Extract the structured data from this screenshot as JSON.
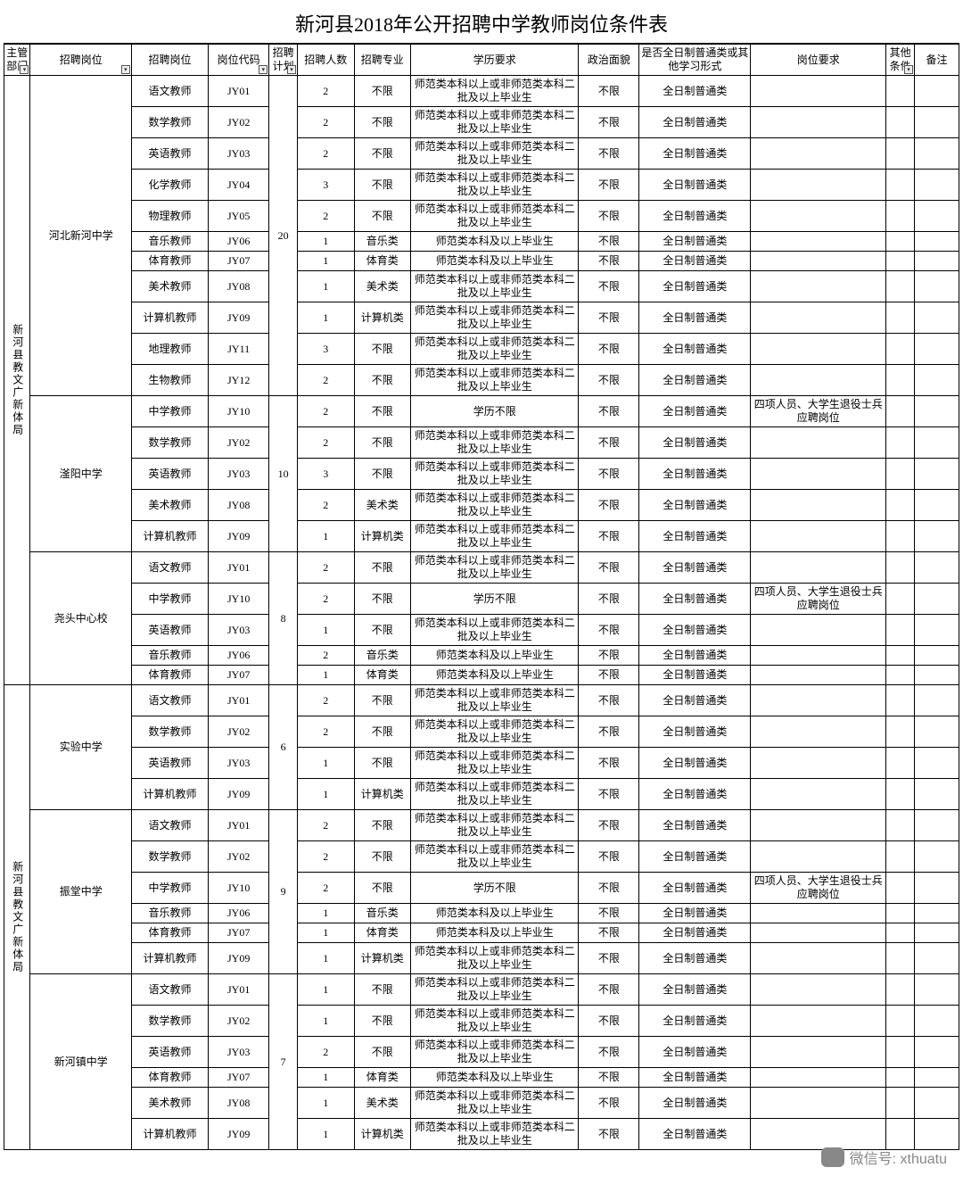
{
  "title": "新河县2018年公开招聘中学教师岗位条件表",
  "headers": [
    "主管部门",
    "招聘岗位",
    "招聘岗位",
    "岗位代码",
    "招聘计划",
    "招聘人数",
    "招聘专业",
    "学历要求",
    "政治面貌",
    "是否全日制普通类或其他学习形式",
    "岗位要求",
    "其他条件",
    "备注"
  ],
  "filter_cols": [
    0,
    1,
    3,
    4,
    11
  ],
  "edu_long": "师范类本科以上或非师范类本科二批及以上毕业生",
  "edu_short": "师范类本科及以上毕业生",
  "edu_none": "学历不限",
  "pol": "不限",
  "fulltime": "全日制普通类",
  "req_special": "四项人员、大学生退役士兵应聘岗位",
  "watermark": "微信号: xthuatu",
  "dept_groups": [
    {
      "dept": "新河县教文广新体局",
      "orgs": [
        {
          "org": "河北新河中学",
          "plan": 20,
          "rows": [
            {
              "pos": "语文教师",
              "code": "JY01",
              "n": 2,
              "spec": "不限",
              "edu": "long"
            },
            {
              "pos": "数学教师",
              "code": "JY02",
              "n": 2,
              "spec": "不限",
              "edu": "long"
            },
            {
              "pos": "英语教师",
              "code": "JY03",
              "n": 2,
              "spec": "不限",
              "edu": "long"
            },
            {
              "pos": "化学教师",
              "code": "JY04",
              "n": 3,
              "spec": "不限",
              "edu": "long"
            },
            {
              "pos": "物理教师",
              "code": "JY05",
              "n": 2,
              "spec": "不限",
              "edu": "long"
            },
            {
              "pos": "音乐教师",
              "code": "JY06",
              "n": 1,
              "spec": "音乐类",
              "edu": "short",
              "h": "short"
            },
            {
              "pos": "体育教师",
              "code": "JY07",
              "n": 1,
              "spec": "体育类",
              "edu": "short",
              "h": "short"
            },
            {
              "pos": "美术教师",
              "code": "JY08",
              "n": 1,
              "spec": "美术类",
              "edu": "long"
            },
            {
              "pos": "计算机教师",
              "code": "JY09",
              "n": 1,
              "spec": "计算机类",
              "edu": "long"
            },
            {
              "pos": "地理教师",
              "code": "JY11",
              "n": 3,
              "spec": "不限",
              "edu": "long"
            },
            {
              "pos": "生物教师",
              "code": "JY12",
              "n": 2,
              "spec": "不限",
              "edu": "long"
            }
          ]
        },
        {
          "org": "滏阳中学",
          "plan": 10,
          "rows": [
            {
              "pos": "中学教师",
              "code": "JY10",
              "n": 2,
              "spec": "不限",
              "edu": "none",
              "req": true
            },
            {
              "pos": "数学教师",
              "code": "JY02",
              "n": 2,
              "spec": "不限",
              "edu": "long"
            },
            {
              "pos": "英语教师",
              "code": "JY03",
              "n": 3,
              "spec": "不限",
              "edu": "long"
            },
            {
              "pos": "美术教师",
              "code": "JY08",
              "n": 2,
              "spec": "美术类",
              "edu": "long"
            },
            {
              "pos": "计算机教师",
              "code": "JY09",
              "n": 1,
              "spec": "计算机类",
              "edu": "long"
            }
          ]
        },
        {
          "org": "尧头中心校",
          "plan": 8,
          "rows": [
            {
              "pos": "语文教师",
              "code": "JY01",
              "n": 2,
              "spec": "不限",
              "edu": "long"
            },
            {
              "pos": "中学教师",
              "code": "JY10",
              "n": 2,
              "spec": "不限",
              "edu": "none",
              "req": true
            },
            {
              "pos": "英语教师",
              "code": "JY03",
              "n": 1,
              "spec": "不限",
              "edu": "long"
            },
            {
              "pos": "音乐教师",
              "code": "JY06",
              "n": 2,
              "spec": "音乐类",
              "edu": "short",
              "h": "short"
            },
            {
              "pos": "体育教师",
              "code": "JY07",
              "n": 1,
              "spec": "体育类",
              "edu": "short",
              "h": "short"
            }
          ]
        }
      ]
    },
    {
      "dept": "新河县教文广新体局",
      "orgs": [
        {
          "org": "实验中学",
          "plan": 6,
          "rows": [
            {
              "pos": "语文教师",
              "code": "JY01",
              "n": 2,
              "spec": "不限",
              "edu": "long"
            },
            {
              "pos": "数学教师",
              "code": "JY02",
              "n": 2,
              "spec": "不限",
              "edu": "long"
            },
            {
              "pos": "英语教师",
              "code": "JY03",
              "n": 1,
              "spec": "不限",
              "edu": "long"
            },
            {
              "pos": "计算机教师",
              "code": "JY09",
              "n": 1,
              "spec": "计算机类",
              "edu": "long"
            }
          ]
        },
        {
          "org": "振堂中学",
          "plan": 9,
          "rows": [
            {
              "pos": "语文教师",
              "code": "JY01",
              "n": 2,
              "spec": "不限",
              "edu": "long"
            },
            {
              "pos": "数学教师",
              "code": "JY02",
              "n": 2,
              "spec": "不限",
              "edu": "long"
            },
            {
              "pos": "中学教师",
              "code": "JY10",
              "n": 2,
              "spec": "不限",
              "edu": "none",
              "req": true
            },
            {
              "pos": "音乐教师",
              "code": "JY06",
              "n": 1,
              "spec": "音乐类",
              "edu": "short",
              "h": "short"
            },
            {
              "pos": "体育教师",
              "code": "JY07",
              "n": 1,
              "spec": "体育类",
              "edu": "short",
              "h": "short"
            },
            {
              "pos": "计算机教师",
              "code": "JY09",
              "n": 1,
              "spec": "计算机类",
              "edu": "long"
            }
          ]
        },
        {
          "org": "新河镇中学",
          "plan": 7,
          "rows": [
            {
              "pos": "语文教师",
              "code": "JY01",
              "n": 1,
              "spec": "不限",
              "edu": "long"
            },
            {
              "pos": "数学教师",
              "code": "JY02",
              "n": 1,
              "spec": "不限",
              "edu": "long"
            },
            {
              "pos": "英语教师",
              "code": "JY03",
              "n": 2,
              "spec": "不限",
              "edu": "long"
            },
            {
              "pos": "体育教师",
              "code": "JY07",
              "n": 1,
              "spec": "体育类",
              "edu": "short",
              "h": "short"
            },
            {
              "pos": "美术教师",
              "code": "JY08",
              "n": 1,
              "spec": "美术类",
              "edu": "long"
            },
            {
              "pos": "计算机教师",
              "code": "JY09",
              "n": 1,
              "spec": "计算机类",
              "edu": "long"
            }
          ]
        }
      ]
    }
  ]
}
